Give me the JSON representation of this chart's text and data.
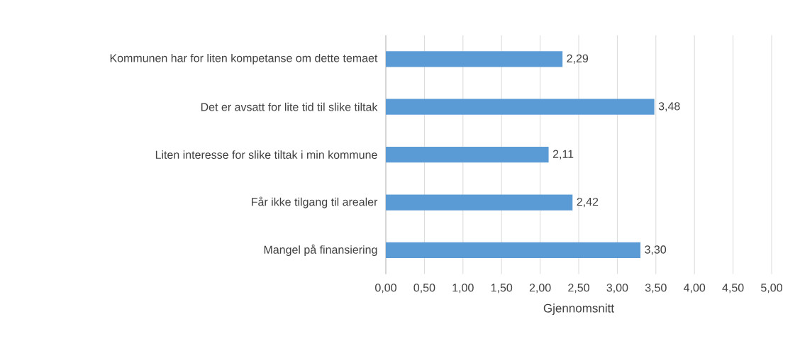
{
  "chart_data": {
    "type": "bar",
    "orientation": "horizontal",
    "categories": [
      "Kommunen har for liten kompetanse om dette temaet",
      "Det er avsatt for lite tid til slike tiltak",
      "Liten interesse for slike tiltak i min kommune",
      "Får ikke tilgang til arealer",
      "Mangel på finansiering"
    ],
    "values": [
      2.29,
      3.48,
      2.11,
      2.42,
      3.3
    ],
    "value_labels": [
      "2,29",
      "3,48",
      "2,11",
      "2,42",
      "3,30"
    ],
    "color": "#5b9bd5",
    "xlabel": "Gjennomsnitt",
    "xlim": [
      0,
      5
    ],
    "xticks": [
      {
        "value": 0,
        "label": "0,00"
      },
      {
        "value": 0.5,
        "label": "0,50"
      },
      {
        "value": 1,
        "label": "1,00"
      },
      {
        "value": 1.5,
        "label": "1,50"
      },
      {
        "value": 2,
        "label": "2,00"
      },
      {
        "value": 2.5,
        "label": "2,50"
      },
      {
        "value": 3,
        "label": "3,00"
      },
      {
        "value": 3.5,
        "label": "3,50"
      },
      {
        "value": 4,
        "label": "4,00"
      },
      {
        "value": 4.5,
        "label": "4,50"
      },
      {
        "value": 5,
        "label": "5,00"
      }
    ],
    "grid": "x"
  }
}
